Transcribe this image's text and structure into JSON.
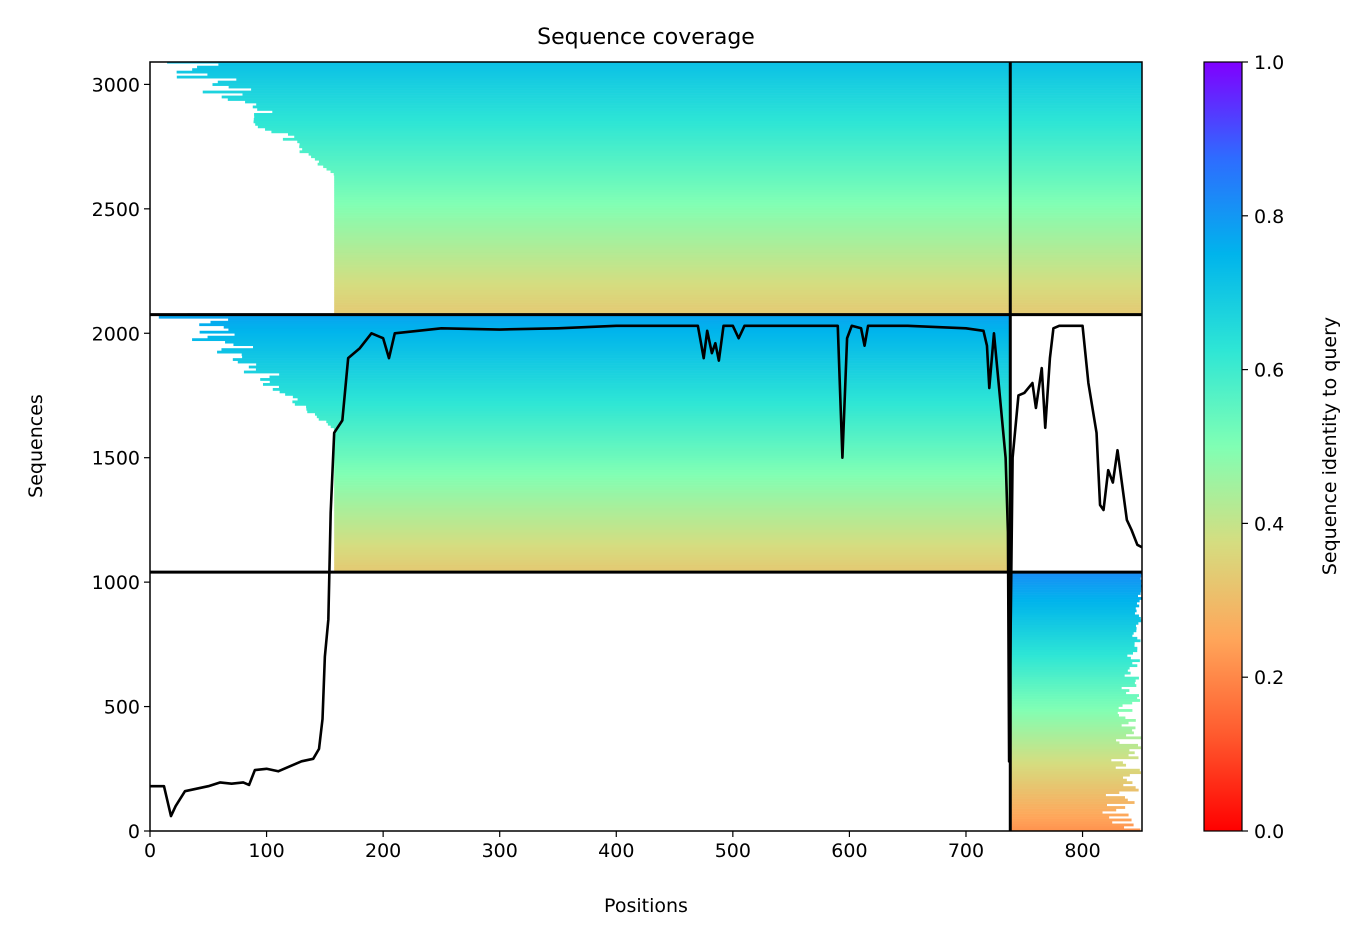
{
  "chart_data": {
    "type": "heatmap",
    "title": "Sequence coverage",
    "xlabel": "Positions",
    "ylabel": "Sequences",
    "xlim": [
      0,
      851
    ],
    "ylim": [
      0,
      3090
    ],
    "xticks": [
      0,
      100,
      200,
      300,
      400,
      500,
      600,
      700,
      800
    ],
    "yticks": [
      0,
      500,
      1000,
      1500,
      2000,
      2500,
      3000
    ],
    "colorbar": {
      "label": "Sequence identity to query",
      "range": [
        0,
        1
      ],
      "ticks": [
        "0.0",
        "0.2",
        "0.4",
        "0.6",
        "0.8",
        "1.0"
      ],
      "colormap": "rainbow",
      "stops": [
        {
          "v": 0.0,
          "color": "#ff0000"
        },
        {
          "v": 0.125,
          "color": "#ff5a2e"
        },
        {
          "v": 0.25,
          "color": "#ffa65a"
        },
        {
          "v": 0.375,
          "color": "#d5dd80"
        },
        {
          "v": 0.5,
          "color": "#80ffb4"
        },
        {
          "v": 0.625,
          "color": "#2ee6d5"
        },
        {
          "v": 0.75,
          "color": "#00b4ec"
        },
        {
          "v": 0.875,
          "color": "#2e6cff"
        },
        {
          "v": 1.0,
          "color": "#8000ff"
        }
      ]
    },
    "grid": false,
    "separators": {
      "vertical_x": 738,
      "horizontal_y": [
        2075,
        1040
      ]
    },
    "blocks": [
      {
        "name": "block-top",
        "rows": [
          2075,
          3090
        ],
        "identity_bottom_to_top": [
          0.33,
          0.72
        ],
        "dense_x_start": 158,
        "ragged_x_start_top": 0,
        "extends_right_to": 851
      },
      {
        "name": "block-middle",
        "rows": [
          1040,
          2075
        ],
        "identity_bottom_to_top": [
          0.33,
          0.78
        ],
        "dense_x_start": 158,
        "ragged_x_start_top": 0,
        "extends_right_to": 738
      },
      {
        "name": "block-bottom",
        "rows": [
          0,
          1040
        ],
        "identity_bottom_to_top": [
          0.22,
          0.82
        ],
        "dense_x_start": 738,
        "extends_right_to": 851
      }
    ],
    "coverage_line": {
      "name": "coverage",
      "color": "#000000",
      "points": [
        [
          0,
          180
        ],
        [
          12,
          180
        ],
        [
          15,
          120
        ],
        [
          18,
          60
        ],
        [
          22,
          100
        ],
        [
          30,
          160
        ],
        [
          40,
          170
        ],
        [
          50,
          180
        ],
        [
          60,
          195
        ],
        [
          70,
          190
        ],
        [
          80,
          195
        ],
        [
          85,
          185
        ],
        [
          90,
          245
        ],
        [
          100,
          250
        ],
        [
          110,
          240
        ],
        [
          120,
          260
        ],
        [
          130,
          280
        ],
        [
          140,
          290
        ],
        [
          145,
          330
        ],
        [
          148,
          450
        ],
        [
          150,
          700
        ],
        [
          153,
          850
        ],
        [
          155,
          1280
        ],
        [
          158,
          1600
        ],
        [
          165,
          1650
        ],
        [
          170,
          1900
        ],
        [
          180,
          1940
        ],
        [
          190,
          2000
        ],
        [
          200,
          1980
        ],
        [
          205,
          1900
        ],
        [
          210,
          2000
        ],
        [
          250,
          2020
        ],
        [
          300,
          2015
        ],
        [
          350,
          2020
        ],
        [
          400,
          2030
        ],
        [
          450,
          2030
        ],
        [
          470,
          2030
        ],
        [
          475,
          1900
        ],
        [
          478,
          2010
        ],
        [
          482,
          1920
        ],
        [
          485,
          1960
        ],
        [
          488,
          1890
        ],
        [
          492,
          2030
        ],
        [
          500,
          2030
        ],
        [
          505,
          1980
        ],
        [
          510,
          2030
        ],
        [
          550,
          2030
        ],
        [
          590,
          2030
        ],
        [
          594,
          1500
        ],
        [
          598,
          1980
        ],
        [
          602,
          2030
        ],
        [
          610,
          2020
        ],
        [
          613,
          1950
        ],
        [
          616,
          2030
        ],
        [
          650,
          2030
        ],
        [
          700,
          2020
        ],
        [
          715,
          2010
        ],
        [
          718,
          1950
        ],
        [
          720,
          1780
        ],
        [
          724,
          2000
        ],
        [
          730,
          1700
        ],
        [
          734,
          1500
        ],
        [
          736,
          1200
        ],
        [
          737,
          280
        ],
        [
          740,
          1500
        ],
        [
          745,
          1750
        ],
        [
          750,
          1760
        ],
        [
          757,
          1800
        ],
        [
          760,
          1700
        ],
        [
          765,
          1860
        ],
        [
          768,
          1620
        ],
        [
          772,
          1900
        ],
        [
          775,
          2020
        ],
        [
          780,
          2030
        ],
        [
          790,
          2030
        ],
        [
          800,
          2030
        ],
        [
          805,
          1800
        ],
        [
          812,
          1600
        ],
        [
          815,
          1310
        ],
        [
          818,
          1290
        ],
        [
          822,
          1450
        ],
        [
          826,
          1400
        ],
        [
          830,
          1530
        ],
        [
          838,
          1250
        ],
        [
          842,
          1210
        ],
        [
          847,
          1150
        ],
        [
          851,
          1140
        ]
      ]
    }
  }
}
